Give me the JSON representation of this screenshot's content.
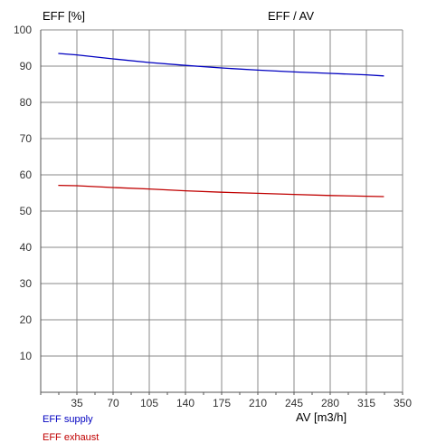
{
  "chart_data": {
    "type": "line",
    "title": "EFF / AV",
    "xlabel": "AV [m3/h]",
    "ylabel": "EFF [%]",
    "xlim": [
      0,
      350
    ],
    "ylim": [
      0,
      100
    ],
    "x_ticks": [
      35,
      70,
      105,
      140,
      175,
      210,
      245,
      280,
      315,
      350
    ],
    "y_ticks": [
      10,
      20,
      30,
      40,
      50,
      60,
      70,
      80,
      90,
      100
    ],
    "grid": true,
    "legend_position": "bottom-left",
    "series": [
      {
        "name": "EFF supply",
        "color": "#0000c0",
        "x": [
          17,
          35,
          70,
          105,
          140,
          175,
          210,
          245,
          280,
          315,
          332
        ],
        "y": [
          93.5,
          93.1,
          92.0,
          91.0,
          90.2,
          89.5,
          88.9,
          88.4,
          88.0,
          87.6,
          87.3
        ]
      },
      {
        "name": "EFF exhaust",
        "color": "#c00000",
        "x": [
          17,
          35,
          70,
          105,
          140,
          175,
          210,
          245,
          280,
          315,
          332
        ],
        "y": [
          57.1,
          57.0,
          56.5,
          56.1,
          55.6,
          55.2,
          54.9,
          54.6,
          54.3,
          54.1,
          54.0
        ]
      }
    ]
  }
}
